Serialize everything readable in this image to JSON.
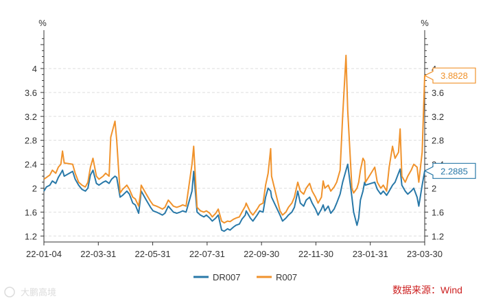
{
  "chart_data": {
    "type": "line",
    "title": "",
    "xlabel": "",
    "ylabel": "%",
    "ylabel_right": "%",
    "ylim": [
      1.1,
      4.55
    ],
    "y_ticks": [
      1.2,
      1.6,
      2,
      2.4,
      2.8,
      3.2,
      3.6,
      4
    ],
    "y_tick_labels": [
      "1.2",
      "1.6",
      "2",
      "2.4",
      "2.8",
      "3.2",
      "3.6",
      "4"
    ],
    "x_tick_labels": [
      "22-01-04",
      "22-03-31",
      "22-05-31",
      "22-07-31",
      "22-09-30",
      "22-11-30",
      "23-01-31",
      "23-03-30"
    ],
    "x_start": "2022-01-04",
    "x_end": "2023-03-30",
    "grid": true,
    "legend_position": "bottom",
    "series": [
      {
        "name": "DR007",
        "color": "#2878a8",
        "last_value": "2.2885",
        "points": [
          [
            "2022-01-04",
            1.95
          ],
          [
            "2022-01-07",
            2.02
          ],
          [
            "2022-01-11",
            2.05
          ],
          [
            "2022-01-14",
            2.12
          ],
          [
            "2022-01-18",
            2.08
          ],
          [
            "2022-01-21",
            2.18
          ],
          [
            "2022-01-24",
            2.25
          ],
          [
            "2022-01-26",
            2.3
          ],
          [
            "2022-01-28",
            2.2
          ],
          [
            "2022-02-07",
            2.28
          ],
          [
            "2022-02-10",
            2.15
          ],
          [
            "2022-02-14",
            2.05
          ],
          [
            "2022-02-18",
            1.98
          ],
          [
            "2022-02-22",
            1.95
          ],
          [
            "2022-02-25",
            2.0
          ],
          [
            "2022-02-28",
            2.22
          ],
          [
            "2022-03-03",
            2.3
          ],
          [
            "2022-03-07",
            2.08
          ],
          [
            "2022-03-10",
            2.05
          ],
          [
            "2022-03-15",
            2.1
          ],
          [
            "2022-03-18",
            2.12
          ],
          [
            "2022-03-22",
            2.08
          ],
          [
            "2022-03-25",
            2.15
          ],
          [
            "2022-03-29",
            2.2
          ],
          [
            "2022-03-31",
            2.18
          ],
          [
            "2022-04-04",
            1.85
          ],
          [
            "2022-04-07",
            1.88
          ],
          [
            "2022-04-12",
            1.95
          ],
          [
            "2022-04-15",
            1.9
          ],
          [
            "2022-04-19",
            1.75
          ],
          [
            "2022-04-22",
            1.72
          ],
          [
            "2022-04-26",
            1.58
          ],
          [
            "2022-04-28",
            1.82
          ],
          [
            "2022-04-29",
            1.95
          ],
          [
            "2022-05-05",
            1.8
          ],
          [
            "2022-05-10",
            1.68
          ],
          [
            "2022-05-13",
            1.62
          ],
          [
            "2022-05-17",
            1.6
          ],
          [
            "2022-05-20",
            1.58
          ],
          [
            "2022-05-24",
            1.55
          ],
          [
            "2022-05-27",
            1.58
          ],
          [
            "2022-05-31",
            1.7
          ],
          [
            "2022-06-06",
            1.6
          ],
          [
            "2022-06-10",
            1.58
          ],
          [
            "2022-06-14",
            1.6
          ],
          [
            "2022-06-17",
            1.62
          ],
          [
            "2022-06-21",
            1.6
          ],
          [
            "2022-06-24",
            1.75
          ],
          [
            "2022-06-28",
            1.95
          ],
          [
            "2022-06-30",
            2.28
          ],
          [
            "2022-07-04",
            1.6
          ],
          [
            "2022-07-08",
            1.55
          ],
          [
            "2022-07-12",
            1.52
          ],
          [
            "2022-07-15",
            1.55
          ],
          [
            "2022-07-19",
            1.5
          ],
          [
            "2022-07-22",
            1.45
          ],
          [
            "2022-07-26",
            1.5
          ],
          [
            "2022-07-29",
            1.55
          ],
          [
            "2022-08-02",
            1.3
          ],
          [
            "2022-08-05",
            1.28
          ],
          [
            "2022-08-09",
            1.32
          ],
          [
            "2022-08-12",
            1.3
          ],
          [
            "2022-08-16",
            1.35
          ],
          [
            "2022-08-19",
            1.38
          ],
          [
            "2022-08-23",
            1.4
          ],
          [
            "2022-08-26",
            1.48
          ],
          [
            "2022-08-30",
            1.55
          ],
          [
            "2022-08-31",
            1.62
          ],
          [
            "2022-09-05",
            1.5
          ],
          [
            "2022-09-08",
            1.45
          ],
          [
            "2022-09-13",
            1.55
          ],
          [
            "2022-09-16",
            1.62
          ],
          [
            "2022-09-20",
            1.6
          ],
          [
            "2022-09-23",
            1.85
          ],
          [
            "2022-09-26",
            2.0
          ],
          [
            "2022-09-29",
            1.95
          ],
          [
            "2022-09-30",
            1.85
          ],
          [
            "2022-10-10",
            1.55
          ],
          [
            "2022-10-13",
            1.45
          ],
          [
            "2022-10-17",
            1.5
          ],
          [
            "2022-10-20",
            1.55
          ],
          [
            "2022-10-24",
            1.6
          ],
          [
            "2022-10-27",
            1.68
          ],
          [
            "2022-10-31",
            1.95
          ],
          [
            "2022-11-03",
            1.75
          ],
          [
            "2022-11-07",
            1.7
          ],
          [
            "2022-11-10",
            1.8
          ],
          [
            "2022-11-14",
            1.85
          ],
          [
            "2022-11-17",
            1.75
          ],
          [
            "2022-11-21",
            1.65
          ],
          [
            "2022-11-24",
            1.55
          ],
          [
            "2022-11-28",
            1.65
          ],
          [
            "2022-11-30",
            1.72
          ],
          [
            "2022-12-02",
            1.62
          ],
          [
            "2022-12-06",
            1.7
          ],
          [
            "2022-12-09",
            1.58
          ],
          [
            "2022-12-13",
            1.65
          ],
          [
            "2022-12-16",
            1.75
          ],
          [
            "2022-12-20",
            1.9
          ],
          [
            "2022-12-23",
            2.1
          ],
          [
            "2022-12-27",
            2.3
          ],
          [
            "2022-12-29",
            2.4
          ],
          [
            "2023-01-03",
            1.85
          ],
          [
            "2023-01-05",
            1.6
          ],
          [
            "2023-01-09",
            1.38
          ],
          [
            "2023-01-11",
            1.5
          ],
          [
            "2023-01-13",
            1.8
          ],
          [
            "2023-01-16",
            1.95
          ],
          [
            "2023-01-18",
            2.1
          ],
          [
            "2023-01-19",
            2.05
          ],
          [
            "2023-01-30",
            2.1
          ],
          [
            "2023-02-02",
            1.98
          ],
          [
            "2023-02-06",
            1.9
          ],
          [
            "2023-02-09",
            1.95
          ],
          [
            "2023-02-13",
            1.88
          ],
          [
            "2023-02-16",
            1.95
          ],
          [
            "2023-02-20",
            2.05
          ],
          [
            "2023-02-23",
            2.1
          ],
          [
            "2023-02-27",
            2.25
          ],
          [
            "2023-03-01",
            2.32
          ],
          [
            "2023-03-03",
            2.05
          ],
          [
            "2023-03-07",
            1.95
          ],
          [
            "2023-03-10",
            1.9
          ],
          [
            "2023-03-14",
            1.95
          ],
          [
            "2023-03-17",
            2.0
          ],
          [
            "2023-03-21",
            1.85
          ],
          [
            "2023-03-23",
            1.7
          ],
          [
            "2023-03-27",
            2.05
          ],
          [
            "2023-03-30",
            2.2885
          ]
        ]
      },
      {
        "name": "R007",
        "color": "#f0922b",
        "last_value": "3.8828",
        "points": [
          [
            "2022-01-04",
            2.15
          ],
          [
            "2022-01-07",
            2.18
          ],
          [
            "2022-01-11",
            2.22
          ],
          [
            "2022-01-14",
            2.3
          ],
          [
            "2022-01-18",
            2.25
          ],
          [
            "2022-01-21",
            2.35
          ],
          [
            "2022-01-24",
            2.4
          ],
          [
            "2022-01-26",
            2.62
          ],
          [
            "2022-01-28",
            2.42
          ],
          [
            "2022-02-07",
            2.4
          ],
          [
            "2022-02-10",
            2.25
          ],
          [
            "2022-02-14",
            2.1
          ],
          [
            "2022-02-18",
            2.05
          ],
          [
            "2022-02-22",
            2.02
          ],
          [
            "2022-02-25",
            2.1
          ],
          [
            "2022-02-28",
            2.35
          ],
          [
            "2022-03-03",
            2.5
          ],
          [
            "2022-03-07",
            2.2
          ],
          [
            "2022-03-10",
            2.15
          ],
          [
            "2022-03-15",
            2.2
          ],
          [
            "2022-03-18",
            2.25
          ],
          [
            "2022-03-22",
            2.2
          ],
          [
            "2022-03-24",
            2.85
          ],
          [
            "2022-03-29",
            3.12
          ],
          [
            "2022-03-31",
            2.8
          ],
          [
            "2022-04-04",
            1.92
          ],
          [
            "2022-04-07",
            1.98
          ],
          [
            "2022-04-12",
            2.05
          ],
          [
            "2022-04-15",
            1.98
          ],
          [
            "2022-04-19",
            1.85
          ],
          [
            "2022-04-22",
            1.82
          ],
          [
            "2022-04-26",
            1.7
          ],
          [
            "2022-04-28",
            1.9
          ],
          [
            "2022-04-29",
            2.05
          ],
          [
            "2022-05-05",
            1.9
          ],
          [
            "2022-05-10",
            1.78
          ],
          [
            "2022-05-13",
            1.72
          ],
          [
            "2022-05-17",
            1.7
          ],
          [
            "2022-05-20",
            1.68
          ],
          [
            "2022-05-24",
            1.65
          ],
          [
            "2022-05-27",
            1.68
          ],
          [
            "2022-05-31",
            1.8
          ],
          [
            "2022-06-06",
            1.7
          ],
          [
            "2022-06-10",
            1.68
          ],
          [
            "2022-06-14",
            1.7
          ],
          [
            "2022-06-17",
            1.72
          ],
          [
            "2022-06-21",
            1.7
          ],
          [
            "2022-06-24",
            2.0
          ],
          [
            "2022-06-28",
            2.4
          ],
          [
            "2022-06-30",
            2.7
          ],
          [
            "2022-07-04",
            1.68
          ],
          [
            "2022-07-08",
            1.62
          ],
          [
            "2022-07-12",
            1.6
          ],
          [
            "2022-07-15",
            1.62
          ],
          [
            "2022-07-19",
            1.58
          ],
          [
            "2022-07-22",
            1.52
          ],
          [
            "2022-07-26",
            1.58
          ],
          [
            "2022-07-29",
            1.65
          ],
          [
            "2022-08-02",
            1.45
          ],
          [
            "2022-08-05",
            1.42
          ],
          [
            "2022-08-09",
            1.45
          ],
          [
            "2022-08-12",
            1.44
          ],
          [
            "2022-08-16",
            1.48
          ],
          [
            "2022-08-19",
            1.5
          ],
          [
            "2022-08-23",
            1.52
          ],
          [
            "2022-08-26",
            1.6
          ],
          [
            "2022-08-30",
            1.7
          ],
          [
            "2022-08-31",
            1.75
          ],
          [
            "2022-09-05",
            1.6
          ],
          [
            "2022-09-08",
            1.55
          ],
          [
            "2022-09-13",
            1.65
          ],
          [
            "2022-09-16",
            1.72
          ],
          [
            "2022-09-20",
            1.75
          ],
          [
            "2022-09-23",
            2.05
          ],
          [
            "2022-09-26",
            2.25
          ],
          [
            "2022-09-29",
            2.66
          ],
          [
            "2022-09-30",
            2.2
          ],
          [
            "2022-10-10",
            1.62
          ],
          [
            "2022-10-13",
            1.55
          ],
          [
            "2022-10-17",
            1.6
          ],
          [
            "2022-10-20",
            1.68
          ],
          [
            "2022-10-24",
            1.75
          ],
          [
            "2022-10-27",
            1.85
          ],
          [
            "2022-10-31",
            2.1
          ],
          [
            "2022-11-03",
            1.95
          ],
          [
            "2022-11-07",
            1.9
          ],
          [
            "2022-11-10",
            2.0
          ],
          [
            "2022-11-14",
            2.08
          ],
          [
            "2022-11-17",
            1.95
          ],
          [
            "2022-11-21",
            1.85
          ],
          [
            "2022-11-24",
            1.75
          ],
          [
            "2022-11-28",
            1.85
          ],
          [
            "2022-11-30",
            2.12
          ],
          [
            "2022-12-02",
            2.0
          ],
          [
            "2022-12-06",
            2.05
          ],
          [
            "2022-12-09",
            1.95
          ],
          [
            "2022-12-13",
            2.02
          ],
          [
            "2022-12-16",
            2.1
          ],
          [
            "2022-12-20",
            2.3
          ],
          [
            "2022-12-23",
            3.2
          ],
          [
            "2022-12-27",
            4.22
          ],
          [
            "2022-12-29",
            3.3
          ],
          [
            "2023-01-03",
            2.0
          ],
          [
            "2023-01-05",
            1.92
          ],
          [
            "2023-01-09",
            2.0
          ],
          [
            "2023-01-11",
            2.1
          ],
          [
            "2023-01-13",
            2.3
          ],
          [
            "2023-01-16",
            2.5
          ],
          [
            "2023-01-18",
            2.45
          ],
          [
            "2023-01-19",
            2.1
          ],
          [
            "2023-01-30",
            2.35
          ],
          [
            "2023-02-02",
            2.1
          ],
          [
            "2023-02-06",
            2.0
          ],
          [
            "2023-02-09",
            2.05
          ],
          [
            "2023-02-13",
            1.95
          ],
          [
            "2023-02-16",
            2.35
          ],
          [
            "2023-02-20",
            2.7
          ],
          [
            "2023-02-23",
            2.5
          ],
          [
            "2023-02-27",
            2.6
          ],
          [
            "2023-03-01",
            2.99
          ],
          [
            "2023-03-03",
            2.2
          ],
          [
            "2023-03-07",
            2.1
          ],
          [
            "2023-03-10",
            2.2
          ],
          [
            "2023-03-14",
            2.3
          ],
          [
            "2023-03-17",
            2.4
          ],
          [
            "2023-03-21",
            2.35
          ],
          [
            "2023-03-23",
            2.1
          ],
          [
            "2023-03-27",
            2.6
          ],
          [
            "2023-03-30",
            3.8828
          ]
        ]
      }
    ]
  },
  "source_note": "数据来源：Wind",
  "source_color": "#cc1f1f",
  "watermark": "大鹏高境"
}
